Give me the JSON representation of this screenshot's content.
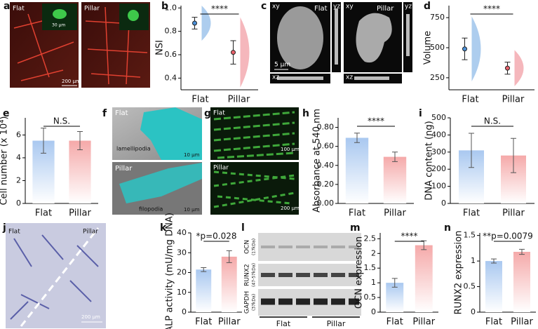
{
  "chart_data": [
    {
      "type": "violin",
      "panel": "b",
      "ylabel": "NSI",
      "categories": [
        "Flat",
        "Pillar"
      ],
      "values": [
        0.87,
        0.62
      ],
      "errors": [
        0.05,
        0.1
      ],
      "colors": [
        "#4a90d9",
        "#e8606a"
      ],
      "ylim": [
        0.3,
        1.02
      ],
      "yticks": [
        0.4,
        0.6,
        0.8,
        {
          "value": 1.0,
          "label": "1.0"
        }
      ],
      "annotation": "****"
    },
    {
      "type": "violin",
      "panel": "d",
      "ylabel": "Volume",
      "categories": [
        "Flat",
        "Pillar"
      ],
      "values": [
        490,
        330
      ],
      "errors": [
        90,
        50
      ],
      "colors": [
        "#4a90d9",
        "#e8606a"
      ],
      "ylim": [
        150,
        850
      ],
      "yticks": [
        250,
        500,
        750
      ],
      "annotation": "****"
    },
    {
      "type": "bar",
      "panel": "e",
      "ylabel": "Cell number (x 10⁴)",
      "categories": [
        "Flat",
        "Pillar"
      ],
      "values": [
        5.5,
        5.5
      ],
      "errors": [
        1.1,
        0.8
      ],
      "colors": [
        "#a9c8f0",
        "#f5a9a9"
      ],
      "ylim": [
        0,
        7.5
      ],
      "yticks": [
        0,
        2,
        4,
        6
      ],
      "annotation": "N.S."
    },
    {
      "type": "bar",
      "panel": "h",
      "ylabel": "Absorbance at 540 nm",
      "categories": [
        "Flat",
        "Pillar"
      ],
      "values": [
        0.69,
        0.49
      ],
      "errors": [
        0.05,
        0.05
      ],
      "colors": [
        "#a9c8f0",
        "#f5a9a9"
      ],
      "ylim": [
        0,
        0.9
      ],
      "yticks": [
        {
          "value": 0,
          "label": "0.00"
        },
        {
          "value": 0.2,
          "label": "0.20"
        },
        {
          "value": 0.4,
          "label": "0.40"
        },
        {
          "value": 0.6,
          "label": "0.60"
        },
        {
          "value": 0.8,
          "label": "0.80"
        }
      ],
      "annotation": "****"
    },
    {
      "type": "bar",
      "panel": "i",
      "ylabel": "DNA content (ng)",
      "categories": [
        "Flat",
        "Pillar"
      ],
      "values": [
        310,
        280
      ],
      "errors": [
        100,
        100
      ],
      "colors": [
        "#a9c8f0",
        "#f5a9a9"
      ],
      "ylim": [
        0,
        500
      ],
      "yticks": [
        0,
        100,
        200,
        300,
        400,
        500
      ],
      "annotation": "N.S."
    },
    {
      "type": "bar",
      "panel": "k",
      "ylabel": "ALP activity (mU/mg DNA)",
      "categories": [
        "Flat",
        "Pillar"
      ],
      "values": [
        21.5,
        28
      ],
      "errors": [
        1,
        3
      ],
      "colors": [
        "#a9c8f0",
        "#f5a9a9"
      ],
      "ylim": [
        0,
        40
      ],
      "yticks": [
        0,
        10,
        20,
        30,
        40
      ],
      "annotation": "*p=0.028"
    },
    {
      "type": "bar",
      "panel": "m",
      "ylabel": "OCN expression",
      "categories": [
        "Flat",
        "Pillar"
      ],
      "values": [
        1,
        2.28
      ],
      "errors": [
        0.15,
        0.15
      ],
      "colors": [
        "#a9c8f0",
        "#f5a9a9"
      ],
      "ylim": [
        0,
        2.7
      ],
      "yticks": [
        0,
        0.5,
        1,
        1.5,
        2,
        2.5
      ],
      "annotation": "****"
    },
    {
      "type": "bar",
      "panel": "n",
      "ylabel": "RUNX2 expression",
      "categories": [
        "Flat",
        "Pillar"
      ],
      "values": [
        1,
        1.18
      ],
      "errors": [
        0.04,
        0.05
      ],
      "colors": [
        "#a9c8f0",
        "#f5a9a9"
      ],
      "ylim": [
        0,
        1.55
      ],
      "yticks": [
        0,
        0.5,
        1,
        1.5
      ],
      "annotation": "**p=0.0079"
    }
  ],
  "images": {
    "a": {
      "panel": "a",
      "texts": [
        "Flat",
        "Pillar",
        "30 µm",
        "200 µm"
      ]
    },
    "c": {
      "panel": "c",
      "texts": [
        "xy",
        "yz",
        "Flat",
        "xz",
        "5 µm",
        "xy",
        "Pillar",
        "yz",
        "xz"
      ]
    },
    "f": {
      "panel": "f",
      "texts": [
        "Flat",
        "lamellipodia",
        "10 µm",
        "Pillar",
        "filopodia",
        "10 µm"
      ]
    },
    "g": {
      "panel": "g",
      "texts": [
        "Flat",
        "100 µm",
        "Pillar",
        "200 µm"
      ]
    },
    "j": {
      "panel": "j",
      "texts": [
        "Flat",
        "Pillar",
        "200 µm"
      ]
    },
    "l": {
      "panel": "l",
      "texts": [
        "OCN",
        "(17kDa)",
        "RUNX2",
        "(47-57kDa)",
        "GAPDH",
        "(37kDa)",
        "Flat",
        "Pillar"
      ]
    }
  }
}
